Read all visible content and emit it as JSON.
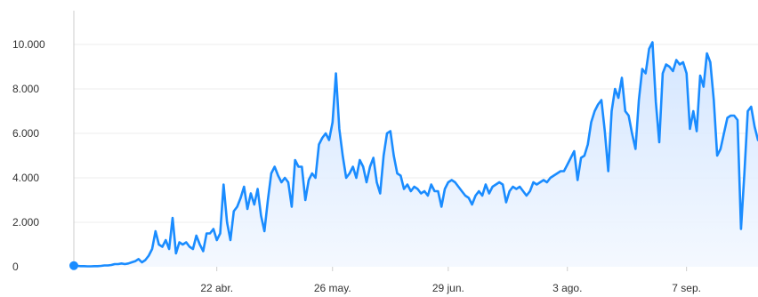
{
  "chart_data": {
    "type": "area",
    "title": "",
    "xlabel": "",
    "ylabel": "",
    "ylim": [
      0,
      10000
    ],
    "grid": true,
    "legend": "none",
    "y_ticks": [
      {
        "value": 0,
        "label": "0"
      },
      {
        "value": 2000,
        "label": "2.000"
      },
      {
        "value": 4000,
        "label": "4.000"
      },
      {
        "value": 6000,
        "label": "6.000"
      },
      {
        "value": 8000,
        "label": "8.000"
      },
      {
        "value": 10000,
        "label": "10.000"
      }
    ],
    "x_ticks": [
      {
        "index": 42,
        "label": "22 abr."
      },
      {
        "index": 76,
        "label": "26 may."
      },
      {
        "index": 110,
        "label": "29 jun."
      },
      {
        "index": 145,
        "label": "3 ago."
      },
      {
        "index": 180,
        "label": "7 sep."
      }
    ],
    "colors": {
      "line": "#1a8cff",
      "fill": "#e3efff",
      "grid": "#eeeeee",
      "axis": "#cccccc"
    },
    "series": [
      {
        "values": [
          50,
          40,
          30,
          30,
          20,
          20,
          30,
          30,
          40,
          60,
          60,
          80,
          120,
          120,
          150,
          120,
          150,
          200,
          250,
          350,
          200,
          300,
          500,
          800,
          1600,
          1000,
          900,
          1200,
          800,
          2200,
          600,
          1100,
          1000,
          1100,
          900,
          800,
          1400,
          1000,
          700,
          1500,
          1500,
          1700,
          1200,
          1500,
          3700,
          2000,
          1200,
          2500,
          2700,
          3100,
          3600,
          2600,
          3300,
          2800,
          3500,
          2300,
          1600,
          3000,
          4200,
          4500,
          4100,
          3800,
          4000,
          3800,
          2700,
          4800,
          4500,
          4500,
          3000,
          3900,
          4200,
          4000,
          5500,
          5800,
          6000,
          5700,
          6500,
          8700,
          6200,
          5000,
          4000,
          4200,
          4500,
          4000,
          4800,
          4500,
          3800,
          4500,
          4900,
          3800,
          3300,
          5000,
          6000,
          6100,
          5000,
          4200,
          4100,
          3500,
          3700,
          3400,
          3600,
          3500,
          3300,
          3400,
          3200,
          3700,
          3400,
          3400,
          2700,
          3500,
          3800,
          3900,
          3800,
          3600,
          3400,
          3200,
          3100,
          2800,
          3200,
          3400,
          3200,
          3700,
          3300,
          3600,
          3700,
          3800,
          3700,
          2900,
          3400,
          3600,
          3500,
          3600,
          3400,
          3200,
          3400,
          3800,
          3700,
          3800,
          3900,
          3800,
          4000,
          4100,
          4200,
          4300,
          4300,
          4600,
          4900,
          5200,
          3900,
          4900,
          5000,
          5500,
          6500,
          7000,
          7300,
          7500,
          6100,
          4300,
          7000,
          8000,
          7600,
          8500,
          7000,
          6800,
          6000,
          5300,
          7500,
          8900,
          8700,
          9800,
          10100,
          7400,
          5600,
          8700,
          9100,
          9000,
          8800,
          9300,
          9100,
          9200,
          8700,
          6200,
          7000,
          6100,
          8600,
          8100,
          9600,
          9200,
          7500,
          5000,
          5300,
          6000,
          6700,
          6800,
          6800,
          6600,
          1700,
          4200,
          7000,
          7200,
          6300,
          5700
        ]
      }
    ]
  }
}
